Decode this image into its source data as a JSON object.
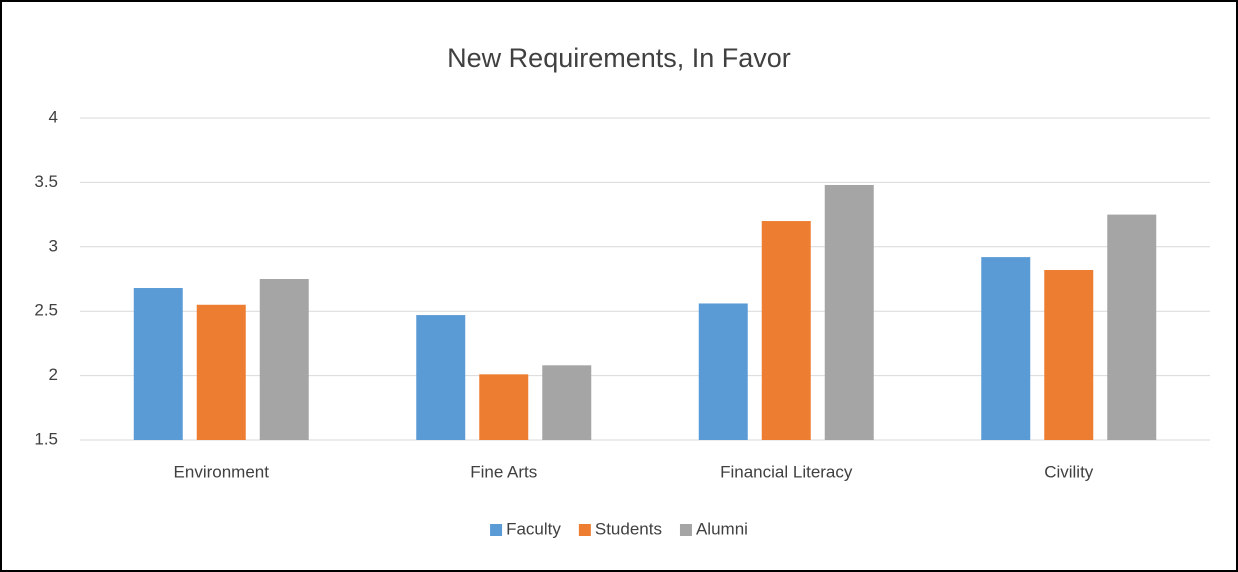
{
  "chart_data": {
    "type": "bar",
    "title": "New Requirements, In Favor",
    "categories": [
      "Environment",
      "Fine Arts",
      "Financial Literacy",
      "Civility"
    ],
    "series": [
      {
        "name": "Faculty",
        "color": "#5b9bd5",
        "values": [
          2.68,
          2.47,
          2.56,
          2.92
        ]
      },
      {
        "name": "Students",
        "color": "#ed7d31",
        "values": [
          2.55,
          2.01,
          3.2,
          2.82
        ]
      },
      {
        "name": "Alumni",
        "color": "#a5a5a5",
        "values": [
          2.75,
          2.08,
          3.48,
          3.25
        ]
      }
    ],
    "ylim": [
      1.5,
      4
    ],
    "yticks": [
      1.5,
      2,
      2.5,
      3,
      3.5,
      4
    ],
    "grid": true,
    "legend": "bottom"
  }
}
